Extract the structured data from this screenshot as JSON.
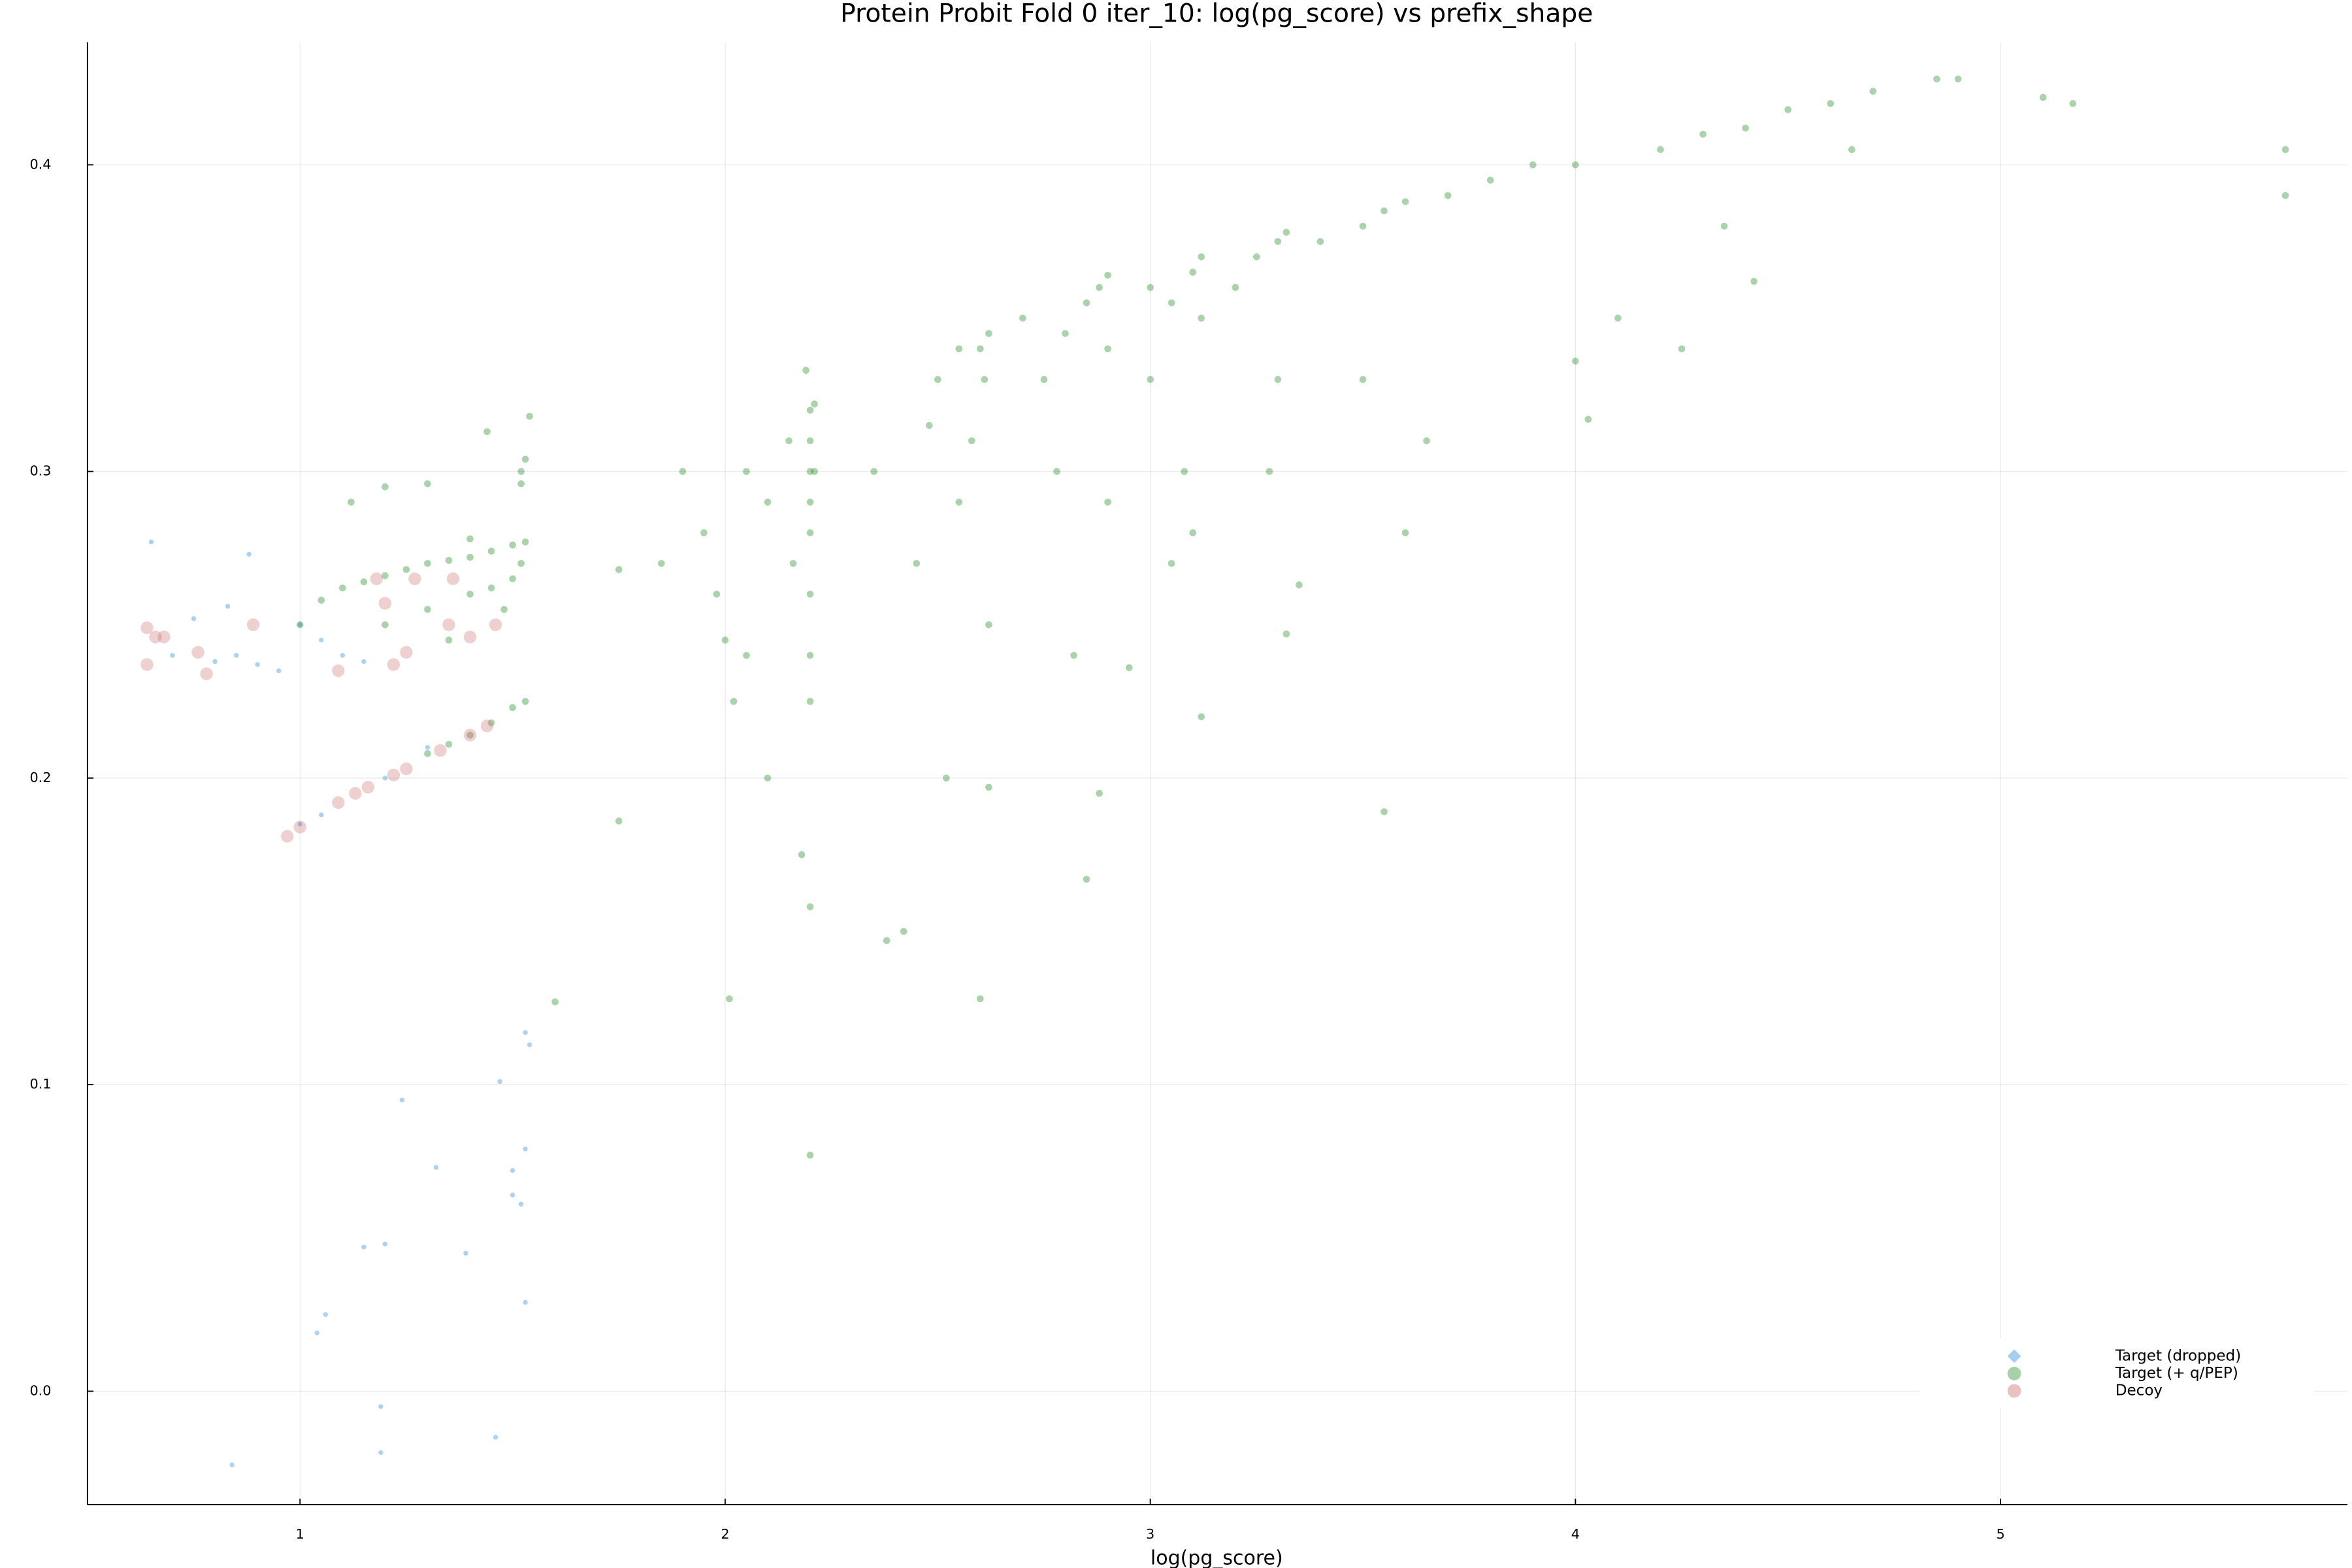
{
  "chart_data": {
    "type": "scatter",
    "title": "Protein Probit Fold 0 iter_10: log(pg_score) vs prefix_shape",
    "x_label": "log(pg_score)",
    "xlim": [
      0.5,
      5.816
    ],
    "ylim": [
      -0.037,
      0.44
    ],
    "xticks": [
      1,
      2,
      3,
      4,
      5
    ],
    "yticks": [
      {
        "value": 0,
        "label": "0.0"
      },
      0.1,
      0.2,
      0.3,
      0.4
    ],
    "grid": true,
    "legend": "bottom right",
    "series": [
      {
        "name": "Target (dropped)",
        "color": "#56a7e8",
        "x": [
          0.65,
          0.84,
          1.04,
          1.06,
          1.15,
          1.19,
          1.19,
          1.2,
          1.24,
          1.32,
          1.39,
          1.46,
          1.47,
          1.5,
          1.5,
          1.52,
          1.53,
          1.53,
          1.53,
          1.54,
          0.7,
          0.75,
          0.8,
          0.85,
          0.9,
          0.95,
          1.0,
          1.05,
          1.1,
          1.15,
          0.83,
          0.88,
          1.0,
          1.05,
          1.2,
          1.3
        ],
        "values": [
          0.277,
          -0.024,
          0.019,
          0.025,
          0.047,
          -0.005,
          -0.02,
          0.048,
          0.095,
          0.073,
          0.045,
          -0.015,
          0.101,
          0.072,
          0.064,
          0.061,
          0.029,
          0.079,
          0.117,
          0.113,
          0.24,
          0.252,
          0.238,
          0.24,
          0.237,
          0.235,
          0.25,
          0.245,
          0.24,
          0.238,
          0.256,
          0.273,
          0.185,
          0.188,
          0.2,
          0.21
        ]
      },
      {
        "name": "Target (+ q/PEP)",
        "color": "#228b22",
        "x": [
          1.0,
          1.05,
          1.1,
          1.15,
          1.2,
          1.25,
          1.3,
          1.35,
          1.4,
          1.45,
          1.5,
          1.53,
          1.2,
          1.3,
          1.4,
          1.45,
          1.5,
          1.52,
          1.12,
          1.2,
          1.3,
          1.4,
          1.44,
          1.52,
          1.53,
          1.52,
          1.54,
          1.35,
          1.48,
          1.3,
          1.35,
          1.4,
          1.45,
          1.5,
          1.53,
          1.6,
          1.75,
          1.75,
          1.85,
          1.9,
          1.95,
          1.98,
          2.0,
          2.01,
          2.02,
          2.05,
          2.1,
          2.1,
          2.15,
          2.18,
          2.2,
          2.2,
          2.2,
          2.2,
          2.2,
          2.2,
          2.2,
          2.2,
          2.2,
          2.2,
          2.19,
          2.21,
          2.21,
          2.16,
          2.05,
          2.35,
          2.38,
          2.42,
          2.45,
          2.5,
          2.52,
          2.55,
          2.58,
          2.6,
          2.6,
          2.62,
          2.62,
          2.62,
          2.61,
          2.55,
          2.48,
          2.7,
          2.75,
          2.8,
          2.85,
          2.88,
          2.9,
          2.9,
          2.85,
          2.88,
          2.9,
          2.82,
          2.95,
          2.78,
          3.0,
          3.05,
          3.1,
          3.12,
          3.12,
          3.12,
          3.08,
          3.05,
          3.1,
          3.0,
          3.2,
          3.25,
          3.3,
          3.32,
          3.3,
          3.35,
          3.32,
          3.28,
          3.4,
          3.5,
          3.55,
          3.6,
          3.55,
          3.6,
          3.5,
          3.65,
          3.7,
          3.8,
          3.9,
          4.0,
          4.0,
          4.03,
          4.1,
          4.2,
          4.25,
          4.3,
          4.35,
          4.4,
          4.42,
          4.5,
          4.6,
          4.65,
          4.7,
          4.85,
          4.9,
          5.1,
          5.17,
          5.67,
          5.67
        ],
        "values": [
          0.25,
          0.258,
          0.262,
          0.264,
          0.266,
          0.268,
          0.27,
          0.271,
          0.272,
          0.274,
          0.276,
          0.277,
          0.25,
          0.255,
          0.26,
          0.262,
          0.265,
          0.27,
          0.29,
          0.295,
          0.296,
          0.278,
          0.313,
          0.3,
          0.304,
          0.296,
          0.318,
          0.245,
          0.255,
          0.208,
          0.211,
          0.214,
          0.218,
          0.223,
          0.225,
          0.127,
          0.186,
          0.268,
          0.27,
          0.3,
          0.28,
          0.26,
          0.245,
          0.128,
          0.225,
          0.3,
          0.29,
          0.2,
          0.31,
          0.175,
          0.32,
          0.31,
          0.3,
          0.29,
          0.28,
          0.26,
          0.24,
          0.225,
          0.158,
          0.077,
          0.333,
          0.322,
          0.3,
          0.27,
          0.24,
          0.3,
          0.147,
          0.15,
          0.27,
          0.33,
          0.2,
          0.34,
          0.31,
          0.128,
          0.34,
          0.345,
          0.25,
          0.197,
          0.33,
          0.29,
          0.315,
          0.35,
          0.33,
          0.345,
          0.355,
          0.36,
          0.364,
          0.34,
          0.167,
          0.195,
          0.29,
          0.24,
          0.236,
          0.3,
          0.36,
          0.355,
          0.365,
          0.37,
          0.35,
          0.22,
          0.3,
          0.27,
          0.28,
          0.33,
          0.36,
          0.37,
          0.375,
          0.378,
          0.33,
          0.263,
          0.247,
          0.3,
          0.375,
          0.38,
          0.385,
          0.388,
          0.189,
          0.28,
          0.33,
          0.31,
          0.39,
          0.395,
          0.4,
          0.4,
          0.336,
          0.317,
          0.35,
          0.405,
          0.34,
          0.41,
          0.38,
          0.412,
          0.362,
          0.418,
          0.42,
          0.405,
          0.424,
          0.428,
          0.428,
          0.422,
          0.42,
          0.405,
          0.39
        ]
      },
      {
        "name": "Decoy",
        "color": "#c86464",
        "x": [
          0.64,
          0.64,
          0.66,
          0.68,
          0.76,
          0.78,
          0.89,
          1.09,
          1.18,
          1.2,
          1.22,
          1.25,
          1.27,
          1.35,
          1.36,
          1.4,
          1.46,
          0.97,
          1.0,
          1.09,
          1.13,
          1.16,
          1.22,
          1.25,
          1.33,
          1.4,
          1.44
        ],
        "values": [
          0.249,
          0.237,
          0.246,
          0.246,
          0.241,
          0.234,
          0.25,
          0.235,
          0.265,
          0.257,
          0.237,
          0.241,
          0.265,
          0.25,
          0.265,
          0.246,
          0.25,
          0.181,
          0.184,
          0.192,
          0.195,
          0.197,
          0.201,
          0.203,
          0.209,
          0.214,
          0.217
        ]
      }
    ]
  }
}
